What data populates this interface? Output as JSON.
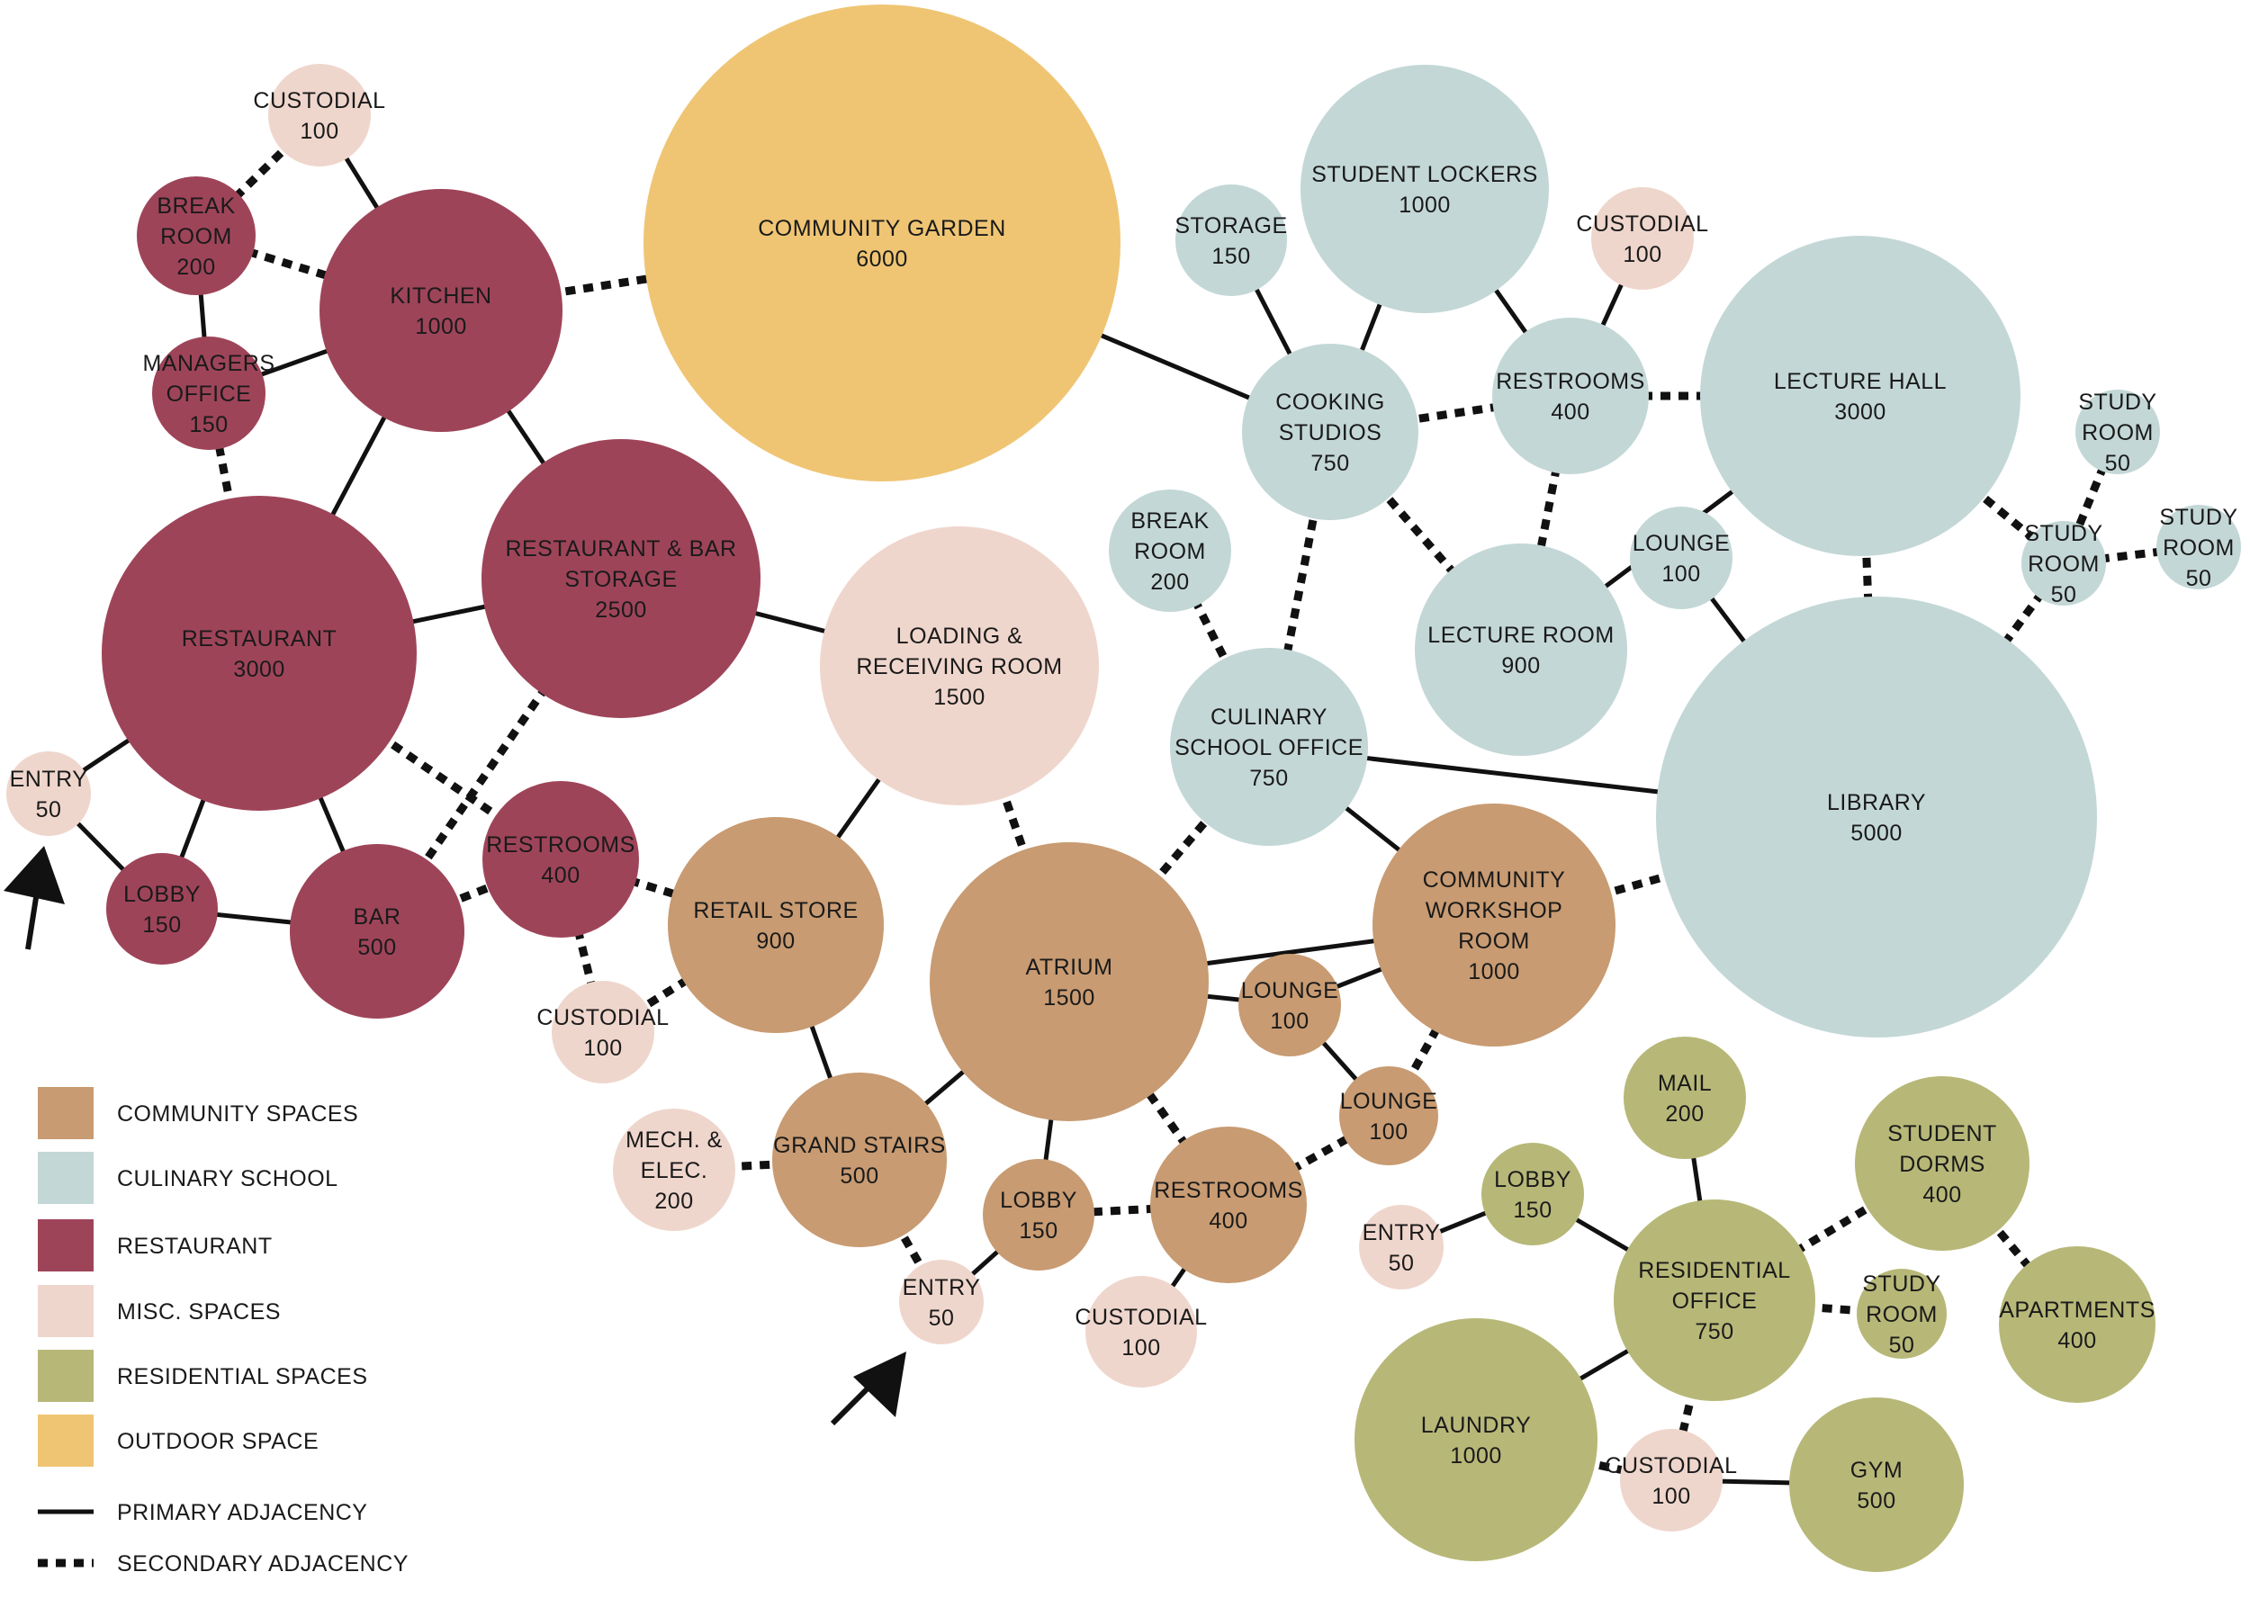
{
  "categories": {
    "community": {
      "label": "COMMUNITY SPACES",
      "color": "#c89b72"
    },
    "culinary": {
      "label": "CULINARY SCHOOL",
      "color": "#c3d7d6"
    },
    "restaurant": {
      "label": "RESTAURANT",
      "color": "#9e4459"
    },
    "misc": {
      "label": "MISC. SPACES",
      "color": "#efd6cc"
    },
    "residential": {
      "label": "RESIDENTIAL SPACES",
      "color": "#b7b878"
    },
    "outdoor": {
      "label": "OUTDOOR SPACE",
      "color": "#efc574"
    }
  },
  "legend": {
    "swatches": [
      "community",
      "culinary",
      "restaurant",
      "misc",
      "residential",
      "outdoor"
    ],
    "primary_label": "PRIMARY ADJACENCY",
    "secondary_label": "SECONDARY ADJACENCY"
  },
  "nodes": [
    {
      "id": "custodial-r1",
      "cat": "misc",
      "lines": [
        "CUSTODIAL",
        "100"
      ]
    },
    {
      "id": "break-room-r",
      "cat": "restaurant",
      "lines": [
        "BREAK",
        "ROOM",
        "200"
      ]
    },
    {
      "id": "kitchen",
      "cat": "restaurant",
      "lines": [
        "KITCHEN",
        "1000"
      ]
    },
    {
      "id": "managers-office",
      "cat": "restaurant",
      "lines": [
        "MANAGERS",
        "OFFICE",
        "150"
      ]
    },
    {
      "id": "restaurant",
      "cat": "restaurant",
      "lines": [
        "RESTAURANT",
        "3000"
      ]
    },
    {
      "id": "rest-bar-storage",
      "cat": "restaurant",
      "lines": [
        "RESTAURANT & BAR",
        "STORAGE",
        "2500"
      ]
    },
    {
      "id": "entry-r",
      "cat": "misc",
      "lines": [
        "ENTRY",
        "50"
      ]
    },
    {
      "id": "lobby-r",
      "cat": "restaurant",
      "lines": [
        "LOBBY",
        "150"
      ]
    },
    {
      "id": "bar",
      "cat": "restaurant",
      "lines": [
        "BAR",
        "500"
      ]
    },
    {
      "id": "restrooms-r",
      "cat": "restaurant",
      "lines": [
        "RESTROOMS",
        "400"
      ]
    },
    {
      "id": "custodial-r2",
      "cat": "misc",
      "lines": [
        "CUSTODIAL",
        "100"
      ]
    },
    {
      "id": "community-garden",
      "cat": "outdoor",
      "lines": [
        "COMMUNITY GARDEN",
        "6000"
      ]
    },
    {
      "id": "loading-receiving",
      "cat": "misc",
      "lines": [
        "LOADING &",
        "RECEIVING ROOM",
        "1500"
      ]
    },
    {
      "id": "retail-store",
      "cat": "community",
      "lines": [
        "RETAIL STORE",
        "900"
      ]
    },
    {
      "id": "atrium",
      "cat": "community",
      "lines": [
        "ATRIUM",
        "1500"
      ]
    },
    {
      "id": "grand-stairs",
      "cat": "community",
      "lines": [
        "GRAND STAIRS",
        "500"
      ]
    },
    {
      "id": "mech-elec",
      "cat": "misc",
      "lines": [
        "MECH. &",
        "ELEC.",
        "200"
      ]
    },
    {
      "id": "lobby-c",
      "cat": "community",
      "lines": [
        "LOBBY",
        "150"
      ]
    },
    {
      "id": "entry-c",
      "cat": "misc",
      "lines": [
        "ENTRY",
        "50"
      ]
    },
    {
      "id": "restrooms-c",
      "cat": "community",
      "lines": [
        "RESTROOMS",
        "400"
      ]
    },
    {
      "id": "custodial-c",
      "cat": "misc",
      "lines": [
        "CUSTODIAL",
        "100"
      ]
    },
    {
      "id": "lounge-c1",
      "cat": "community",
      "lines": [
        "LOUNGE",
        "100"
      ]
    },
    {
      "id": "lounge-c2",
      "cat": "community",
      "lines": [
        "LOUNGE",
        "100"
      ]
    },
    {
      "id": "community-workshop",
      "cat": "community",
      "lines": [
        "COMMUNITY",
        "WORKSHOP",
        "ROOM",
        "1000"
      ]
    },
    {
      "id": "storage-s",
      "cat": "culinary",
      "lines": [
        "STORAGE",
        "150"
      ]
    },
    {
      "id": "student-lockers",
      "cat": "culinary",
      "lines": [
        "STUDENT LOCKERS",
        "1000"
      ]
    },
    {
      "id": "custodial-s",
      "cat": "misc",
      "lines": [
        "CUSTODIAL",
        "100"
      ]
    },
    {
      "id": "cooking-studios",
      "cat": "culinary",
      "lines": [
        "COOKING",
        "STUDIOS",
        "750"
      ]
    },
    {
      "id": "restrooms-s",
      "cat": "culinary",
      "lines": [
        "RESTROOMS",
        "400"
      ]
    },
    {
      "id": "lecture-hall",
      "cat": "culinary",
      "lines": [
        "LECTURE HALL",
        "3000"
      ]
    },
    {
      "id": "study-room-1",
      "cat": "culinary",
      "lines": [
        "STUDY",
        "ROOM",
        "50"
      ]
    },
    {
      "id": "study-room-2",
      "cat": "culinary",
      "lines": [
        "STUDY",
        "ROOM",
        "50"
      ]
    },
    {
      "id": "study-room-3",
      "cat": "culinary",
      "lines": [
        "STUDY",
        "ROOM",
        "50"
      ]
    },
    {
      "id": "break-room-s",
      "cat": "culinary",
      "lines": [
        "BREAK",
        "ROOM",
        "200"
      ]
    },
    {
      "id": "lounge-s",
      "cat": "culinary",
      "lines": [
        "LOUNGE",
        "100"
      ]
    },
    {
      "id": "lecture-room",
      "cat": "culinary",
      "lines": [
        "LECTURE ROOM",
        "900"
      ]
    },
    {
      "id": "culinary-office",
      "cat": "culinary",
      "lines": [
        "CULINARY",
        "SCHOOL OFFICE",
        "750"
      ]
    },
    {
      "id": "library",
      "cat": "culinary",
      "lines": [
        "LIBRARY",
        "5000"
      ]
    },
    {
      "id": "mail",
      "cat": "residential",
      "lines": [
        "MAIL",
        "200"
      ]
    },
    {
      "id": "student-dorms",
      "cat": "residential",
      "lines": [
        "STUDENT",
        "DORMS",
        "400"
      ]
    },
    {
      "id": "lobby-res",
      "cat": "residential",
      "lines": [
        "LOBBY",
        "150"
      ]
    },
    {
      "id": "entry-res",
      "cat": "misc",
      "lines": [
        "ENTRY",
        "50"
      ]
    },
    {
      "id": "residential-office",
      "cat": "residential",
      "lines": [
        "RESIDENTIAL",
        "OFFICE",
        "750"
      ]
    },
    {
      "id": "study-room-res",
      "cat": "residential",
      "lines": [
        "STUDY",
        "ROOM",
        "50"
      ]
    },
    {
      "id": "apartments",
      "cat": "residential",
      "lines": [
        "APARTMENTS",
        "400"
      ]
    },
    {
      "id": "laundry",
      "cat": "residential",
      "lines": [
        "LAUNDRY",
        "1000"
      ]
    },
    {
      "id": "custodial-res",
      "cat": "misc",
      "lines": [
        "CUSTODIAL",
        "100"
      ]
    },
    {
      "id": "gym",
      "cat": "residential",
      "lines": [
        "GYM",
        "500"
      ]
    }
  ],
  "edges": [
    {
      "from": "custodial-r1",
      "to": "break-room-r",
      "type": "secondary"
    },
    {
      "from": "custodial-r1",
      "to": "kitchen",
      "type": "primary"
    },
    {
      "from": "break-room-r",
      "to": "kitchen",
      "type": "secondary"
    },
    {
      "from": "break-room-r",
      "to": "managers-office",
      "type": "primary"
    },
    {
      "from": "managers-office",
      "to": "kitchen",
      "type": "primary"
    },
    {
      "from": "managers-office",
      "to": "restaurant",
      "type": "secondary"
    },
    {
      "from": "kitchen",
      "to": "restaurant",
      "type": "primary"
    },
    {
      "from": "kitchen",
      "to": "rest-bar-storage",
      "type": "primary"
    },
    {
      "from": "kitchen",
      "to": "community-garden",
      "type": "secondary"
    },
    {
      "from": "restaurant",
      "to": "rest-bar-storage",
      "type": "primary"
    },
    {
      "from": "restaurant",
      "to": "entry-r",
      "type": "primary"
    },
    {
      "from": "restaurant",
      "to": "lobby-r",
      "type": "primary"
    },
    {
      "from": "restaurant",
      "to": "bar",
      "type": "primary"
    },
    {
      "from": "restaurant",
      "to": "restrooms-r",
      "type": "secondary"
    },
    {
      "from": "entry-r",
      "to": "lobby-r",
      "type": "primary"
    },
    {
      "from": "lobby-r",
      "to": "bar",
      "type": "primary"
    },
    {
      "from": "bar",
      "to": "rest-bar-storage",
      "type": "secondary"
    },
    {
      "from": "bar",
      "to": "restrooms-r",
      "type": "secondary"
    },
    {
      "from": "rest-bar-storage",
      "to": "loading-receiving",
      "type": "primary"
    },
    {
      "from": "restrooms-r",
      "to": "custodial-r2",
      "type": "secondary"
    },
    {
      "from": "restrooms-r",
      "to": "retail-store",
      "type": "secondary"
    },
    {
      "from": "custodial-r2",
      "to": "retail-store",
      "type": "secondary"
    },
    {
      "from": "community-garden",
      "to": "cooking-studios",
      "type": "primary"
    },
    {
      "from": "loading-receiving",
      "to": "retail-store",
      "type": "primary"
    },
    {
      "from": "loading-receiving",
      "to": "atrium",
      "type": "secondary"
    },
    {
      "from": "retail-store",
      "to": "grand-stairs",
      "type": "primary"
    },
    {
      "from": "grand-stairs",
      "to": "atrium",
      "type": "primary"
    },
    {
      "from": "grand-stairs",
      "to": "mech-elec",
      "type": "secondary"
    },
    {
      "from": "grand-stairs",
      "to": "entry-c",
      "type": "secondary"
    },
    {
      "from": "entry-c",
      "to": "lobby-c",
      "type": "primary"
    },
    {
      "from": "lobby-c",
      "to": "atrium",
      "type": "primary"
    },
    {
      "from": "lobby-c",
      "to": "restrooms-c",
      "type": "secondary"
    },
    {
      "from": "restrooms-c",
      "to": "atrium",
      "type": "secondary"
    },
    {
      "from": "restrooms-c",
      "to": "custodial-c",
      "type": "primary"
    },
    {
      "from": "restrooms-c",
      "to": "lounge-c2",
      "type": "secondary"
    },
    {
      "from": "atrium",
      "to": "lounge-c1",
      "type": "primary"
    },
    {
      "from": "atrium",
      "to": "community-workshop",
      "type": "primary"
    },
    {
      "from": "atrium",
      "to": "culinary-office",
      "type": "secondary"
    },
    {
      "from": "lounge-c1",
      "to": "community-workshop",
      "type": "primary"
    },
    {
      "from": "lounge-c1",
      "to": "lounge-c2",
      "type": "primary"
    },
    {
      "from": "lounge-c2",
      "to": "community-workshop",
      "type": "secondary"
    },
    {
      "from": "community-workshop",
      "to": "culinary-office",
      "type": "primary"
    },
    {
      "from": "community-workshop",
      "to": "library",
      "type": "secondary"
    },
    {
      "from": "storage-s",
      "to": "cooking-studios",
      "type": "primary"
    },
    {
      "from": "student-lockers",
      "to": "cooking-studios",
      "type": "primary"
    },
    {
      "from": "cooking-studios",
      "to": "restrooms-s",
      "type": "secondary"
    },
    {
      "from": "cooking-studios",
      "to": "lecture-room",
      "type": "secondary"
    },
    {
      "from": "cooking-studios",
      "to": "culinary-office",
      "type": "secondary"
    },
    {
      "from": "student-lockers",
      "to": "restrooms-s",
      "type": "primary"
    },
    {
      "from": "custodial-s",
      "to": "restrooms-s",
      "type": "primary"
    },
    {
      "from": "restrooms-s",
      "to": "lecture-hall",
      "type": "secondary"
    },
    {
      "from": "restrooms-s",
      "to": "lecture-room",
      "type": "secondary"
    },
    {
      "from": "lecture-room",
      "to": "lecture-hall",
      "type": "primary"
    },
    {
      "from": "lecture-hall",
      "to": "library",
      "type": "secondary"
    },
    {
      "from": "lecture-hall",
      "to": "study-room-2",
      "type": "secondary"
    },
    {
      "from": "study-room-1",
      "to": "study-room-2",
      "type": "secondary"
    },
    {
      "from": "study-room-2",
      "to": "study-room-3",
      "type": "secondary"
    },
    {
      "from": "study-room-2",
      "to": "library",
      "type": "secondary"
    },
    {
      "from": "lounge-s",
      "to": "library",
      "type": "primary"
    },
    {
      "from": "break-room-s",
      "to": "culinary-office",
      "type": "secondary"
    },
    {
      "from": "culinary-office",
      "to": "library",
      "type": "primary"
    },
    {
      "from": "mail",
      "to": "residential-office",
      "type": "primary"
    },
    {
      "from": "lobby-res",
      "to": "residential-office",
      "type": "primary"
    },
    {
      "from": "entry-res",
      "to": "lobby-res",
      "type": "primary"
    },
    {
      "from": "student-dorms",
      "to": "residential-office",
      "type": "secondary"
    },
    {
      "from": "student-dorms",
      "to": "apartments",
      "type": "secondary"
    },
    {
      "from": "residential-office",
      "to": "study-room-res",
      "type": "secondary"
    },
    {
      "from": "residential-office",
      "to": "laundry",
      "type": "primary"
    },
    {
      "from": "residential-office",
      "to": "custodial-res",
      "type": "secondary"
    },
    {
      "from": "laundry",
      "to": "custodial-res",
      "type": "secondary"
    },
    {
      "from": "custodial-res",
      "to": "gym",
      "type": "primary"
    }
  ]
}
